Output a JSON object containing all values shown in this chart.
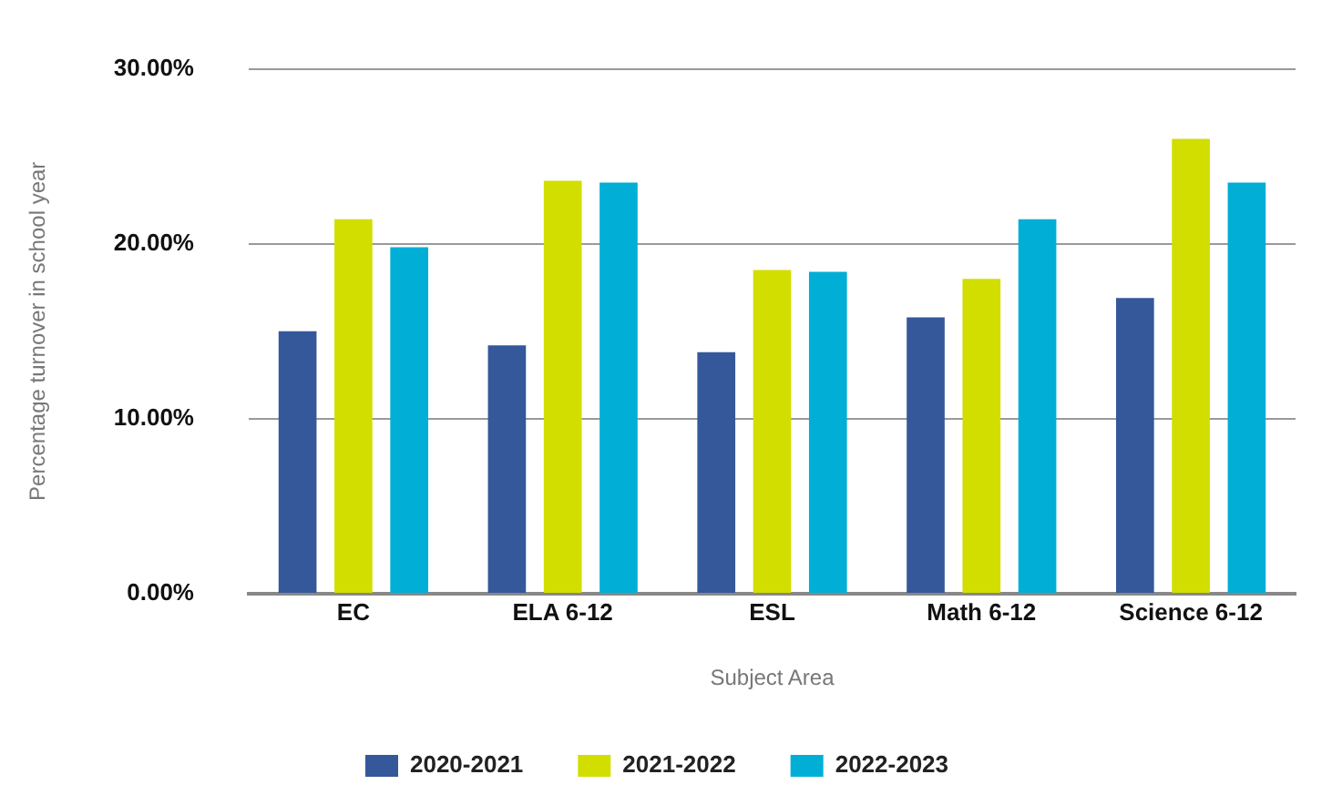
{
  "chart_data": {
    "type": "bar",
    "xlabel": "Subject Area",
    "ylabel": "Percentage turnover in school year",
    "categories": [
      "EC",
      "ELA 6-12",
      "ESL",
      "Math 6-12",
      "Science 6-12"
    ],
    "series": [
      {
        "name": "2020-2021",
        "color": "#34589a",
        "values": [
          15.0,
          14.2,
          13.8,
          15.8,
          16.9
        ]
      },
      {
        "name": "2021-2022",
        "color": "#d2de00",
        "values": [
          21.4,
          23.6,
          18.5,
          18.0,
          26.0
        ]
      },
      {
        "name": "2022-2023",
        "color": "#00aed6",
        "values": [
          19.8,
          23.5,
          18.4,
          21.4,
          23.5
        ]
      }
    ],
    "ylim": [
      0,
      30
    ],
    "yticks": [
      {
        "value": 0,
        "label": "0.00%"
      },
      {
        "value": 10,
        "label": "10.00%"
      },
      {
        "value": 20,
        "label": "20.00%"
      },
      {
        "value": 30,
        "label": "30.00%"
      }
    ],
    "grid": "y",
    "legend": "bottom"
  }
}
